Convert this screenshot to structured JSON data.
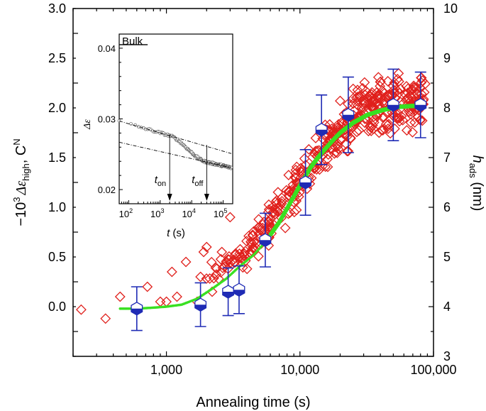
{
  "chart_data": [
    {
      "type": "scatter",
      "xlabel": "Annealing time (s)",
      "ylabel": "−10³ Δε_high , Cᴺ",
      "ylabel_parts": {
        "prefix": "−10",
        "exp": "3",
        "sym": "Δε",
        "sub": "high",
        "suffix": ", C",
        "sup": "N"
      },
      "y2label_parts": {
        "sym": "h",
        "sub": "ads",
        "unit": " (nm)"
      },
      "xscale": "log",
      "xlim": [
        200,
        100000
      ],
      "ylim": [
        -0.5,
        3.0
      ],
      "y2lim": [
        3,
        10
      ],
      "xticks": [
        {
          "v": 1000,
          "label": "1,000"
        },
        {
          "v": 10000,
          "label": "10,000"
        },
        {
          "v": 100000,
          "label": "100,000"
        }
      ],
      "yticks": [
        {
          "v": 0.0,
          "label": "0.0"
        },
        {
          "v": 0.5,
          "label": "0.5"
        },
        {
          "v": 1.0,
          "label": "1.0"
        },
        {
          "v": 1.5,
          "label": "1.5"
        },
        {
          "v": 2.0,
          "label": "2.0"
        },
        {
          "v": 2.5,
          "label": "2.5"
        },
        {
          "v": 3.0,
          "label": "3.0"
        }
      ],
      "y2ticks": [
        {
          "v": 3,
          "label": "3"
        },
        {
          "v": 4,
          "label": "4"
        },
        {
          "v": 5,
          "label": "5"
        },
        {
          "v": 6,
          "label": "6"
        },
        {
          "v": 7,
          "label": "7"
        },
        {
          "v": 8,
          "label": "8"
        },
        {
          "v": 9,
          "label": "9"
        },
        {
          "v": 10,
          "label": "10"
        }
      ],
      "grid": false,
      "colors": {
        "diamonds": "#e0201c",
        "fit": "#39e022",
        "hexagons": "#1f2bb5",
        "axes": "#000000"
      },
      "series": [
        {
          "marker": "diamond-open",
          "anchors": [
            [
              500,
              0.05
            ],
            [
              700,
              0.1
            ],
            [
              900,
              0.15
            ],
            [
              1500,
              0.25
            ],
            [
              2500,
              0.4
            ],
            [
              4000,
              0.55
            ],
            [
              6000,
              0.85
            ],
            [
              9000,
              1.15
            ],
            [
              12000,
              1.4
            ],
            [
              16000,
              1.65
            ],
            [
              22000,
              1.85
            ],
            [
              30000,
              2.0
            ],
            [
              45000,
              2.05
            ],
            [
              90000,
              2.05
            ]
          ],
          "spread": [
            [
              500,
              0.08
            ],
            [
              3000,
              0.18
            ],
            [
              6000,
              0.3
            ],
            [
              20000,
              0.35
            ],
            [
              90000,
              0.4
            ]
          ],
          "count": 460,
          "xmin": 1900,
          "xmax": 88000,
          "extra": [
            [
              230,
              -0.03
            ],
            [
              350,
              -0.12
            ],
            [
              450,
              0.1
            ],
            [
              720,
              0.2
            ],
            [
              900,
              0.05
            ],
            [
              1000,
              0.05
            ],
            [
              1100,
              0.35
            ],
            [
              1200,
              0.1
            ],
            [
              1400,
              0.45
            ],
            [
              1700,
              0.05
            ],
            [
              1800,
              0.3
            ],
            [
              2000,
              0.6
            ],
            [
              2200,
              0.15
            ],
            [
              1900,
              0.55
            ],
            [
              2600,
              0.55
            ],
            [
              3000,
              0.9
            ]
          ]
        },
        {
          "marker": "fit-dots",
          "points": [
            [
              450,
              -0.02
            ],
            [
              600,
              -0.02
            ],
            [
              800,
              -0.01
            ],
            [
              1000,
              0.0
            ],
            [
              1300,
              0.02
            ],
            [
              1700,
              0.08
            ],
            [
              2200,
              0.18
            ],
            [
              2800,
              0.28
            ],
            [
              3500,
              0.4
            ],
            [
              4500,
              0.52
            ],
            [
              5500,
              0.65
            ],
            [
              7000,
              0.85
            ],
            [
              8500,
              1.05
            ],
            [
              10000,
              1.22
            ],
            [
              12000,
              1.4
            ],
            [
              14000,
              1.52
            ],
            [
              17000,
              1.65
            ],
            [
              20000,
              1.75
            ],
            [
              25000,
              1.85
            ],
            [
              32000,
              1.93
            ],
            [
              42000,
              1.98
            ],
            [
              55000,
              2.01
            ],
            [
              70000,
              2.02
            ],
            [
              85000,
              2.02
            ]
          ]
        },
        {
          "marker": "hexagon-half-filled",
          "points": [
            {
              "x": 600,
              "y": -0.02,
              "err": 0.22
            },
            {
              "x": 1800,
              "y": 0.02,
              "err": 0.22
            },
            {
              "x": 2900,
              "y": 0.15,
              "err": 0.24
            },
            {
              "x": 3500,
              "y": 0.17,
              "err": 0.24
            },
            {
              "x": 5500,
              "y": 0.67,
              "err": 0.27
            },
            {
              "x": 11000,
              "y": 1.25,
              "err": 0.33
            },
            {
              "x": 14500,
              "y": 1.78,
              "err": 0.35
            },
            {
              "x": 23000,
              "y": 1.93,
              "err": 0.38
            },
            {
              "x": 50000,
              "y": 2.03,
              "err": 0.36
            },
            {
              "x": 80000,
              "y": 2.03,
              "err": 0.33
            }
          ]
        }
      ]
    },
    {
      "type": "scatter",
      "role": "inset",
      "xlabel_parts": {
        "sym": "t",
        "unit": " (s)"
      },
      "ylabel": "Δε",
      "xscale": "log",
      "xlim": [
        50,
        200000
      ],
      "ylim": [
        0.018,
        0.042
      ],
      "xticks": [
        {
          "v": 100,
          "base": "10",
          "exp": "2"
        },
        {
          "v": 1000,
          "base": "10",
          "exp": "3"
        },
        {
          "v": 10000,
          "base": "10",
          "exp": "4"
        },
        {
          "v": 100000,
          "base": "10",
          "exp": "5"
        }
      ],
      "yticks": [
        {
          "v": 0.02,
          "label": "0.02"
        },
        {
          "v": 0.03,
          "label": "0.03"
        },
        {
          "v": 0.04,
          "label": "0.04"
        }
      ],
      "bulk": {
        "label": "Bulk",
        "value": 0.0405,
        "xfrom": 50,
        "xto": 400
      },
      "upper_line": [
        [
          50,
          0.0297
        ],
        [
          180000,
          0.0251
        ]
      ],
      "lower_line": [
        [
          50,
          0.0267
        ],
        [
          180000,
          0.0231
        ]
      ],
      "data": {
        "xfrom": 50,
        "xto": 180000,
        "count": 150
      },
      "markers": [
        {
          "label_sym": "t",
          "label_sub": "on",
          "x": 2000
        },
        {
          "label_sym": "t",
          "label_sub": "off",
          "x": 30000
        }
      ]
    }
  ]
}
